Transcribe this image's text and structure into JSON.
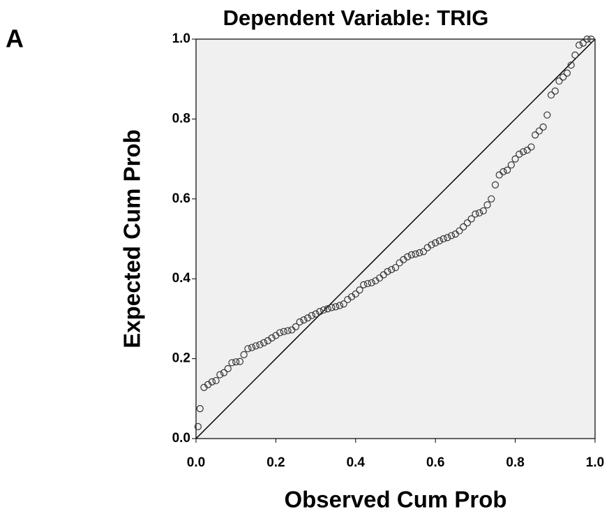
{
  "chart_data": {
    "type": "scatter",
    "panel_label": "A",
    "title": "Dependent Variable: TRIG",
    "x_label": "Observed Cum Prob",
    "y_label": "Expected Cum Prob",
    "xlim": [
      0,
      1
    ],
    "ylim": [
      0,
      1
    ],
    "xticks": [
      {
        "value": 0,
        "label": "0.0"
      },
      0.2,
      0.4,
      0.6,
      0.8,
      {
        "value": 1,
        "label": "1.0"
      }
    ],
    "yticks": [
      {
        "value": 0,
        "label": "0.0"
      },
      0.2,
      0.4,
      0.6,
      0.8,
      {
        "value": 1,
        "label": "1.0"
      }
    ],
    "grid": false,
    "color": "#333333",
    "x": [
      0.005,
      0.01,
      0.02,
      0.03,
      0.04,
      0.05,
      0.06,
      0.07,
      0.08,
      0.09,
      0.1,
      0.11,
      0.12,
      0.13,
      0.14,
      0.15,
      0.16,
      0.17,
      0.18,
      0.19,
      0.2,
      0.21,
      0.22,
      0.23,
      0.24,
      0.25,
      0.26,
      0.27,
      0.28,
      0.29,
      0.3,
      0.31,
      0.32,
      0.33,
      0.34,
      0.35,
      0.36,
      0.37,
      0.38,
      0.39,
      0.4,
      0.41,
      0.42,
      0.43,
      0.44,
      0.45,
      0.46,
      0.47,
      0.48,
      0.49,
      0.5,
      0.51,
      0.52,
      0.53,
      0.54,
      0.55,
      0.56,
      0.57,
      0.58,
      0.59,
      0.6,
      0.61,
      0.62,
      0.63,
      0.64,
      0.65,
      0.66,
      0.67,
      0.68,
      0.69,
      0.7,
      0.71,
      0.72,
      0.73,
      0.74,
      0.75,
      0.76,
      0.77,
      0.78,
      0.79,
      0.8,
      0.81,
      0.82,
      0.83,
      0.84,
      0.85,
      0.86,
      0.87,
      0.88,
      0.89,
      0.9,
      0.91,
      0.92,
      0.93,
      0.94,
      0.95,
      0.96,
      0.97,
      0.98,
      0.99
    ],
    "values": [
      0.03,
      0.075,
      0.128,
      0.135,
      0.142,
      0.145,
      0.16,
      0.165,
      0.175,
      0.19,
      0.192,
      0.193,
      0.21,
      0.225,
      0.228,
      0.232,
      0.235,
      0.24,
      0.245,
      0.252,
      0.258,
      0.265,
      0.268,
      0.27,
      0.272,
      0.28,
      0.292,
      0.297,
      0.302,
      0.308,
      0.312,
      0.318,
      0.322,
      0.325,
      0.328,
      0.33,
      0.333,
      0.337,
      0.348,
      0.355,
      0.362,
      0.372,
      0.385,
      0.388,
      0.39,
      0.395,
      0.402,
      0.41,
      0.418,
      0.423,
      0.428,
      0.44,
      0.448,
      0.455,
      0.46,
      0.462,
      0.465,
      0.468,
      0.478,
      0.485,
      0.49,
      0.495,
      0.5,
      0.503,
      0.508,
      0.512,
      0.52,
      0.53,
      0.54,
      0.55,
      0.562,
      0.565,
      0.57,
      0.585,
      0.6,
      0.635,
      0.66,
      0.668,
      0.672,
      0.685,
      0.7,
      0.712,
      0.718,
      0.722,
      0.73,
      0.76,
      0.77,
      0.78,
      0.81,
      0.86,
      0.87,
      0.895,
      0.905,
      0.915,
      0.935,
      0.96,
      0.985,
      0.99,
      1.0,
      1.0
    ]
  }
}
